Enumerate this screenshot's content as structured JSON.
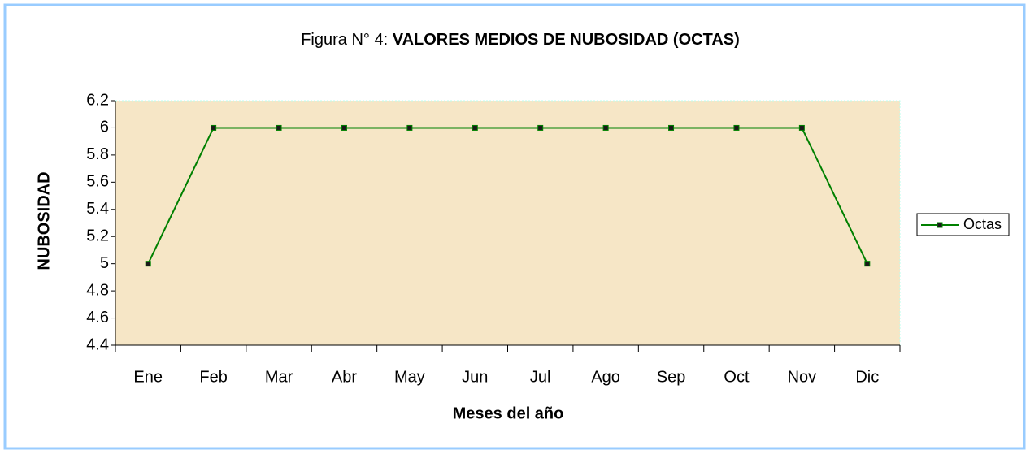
{
  "chart_data": {
    "type": "line",
    "title": [
      "Figura N° 4:",
      "VALORES MEDIOS DE NUBOSIDAD (OCTAS)"
    ],
    "x_label": "Meses del año",
    "y_label": "NUBOSIDAD",
    "categories": [
      "Ene",
      "Feb",
      "Mar",
      "Abr",
      "May",
      "Jun",
      "Jul",
      "Ago",
      "Sep",
      "Oct",
      "Nov",
      "Dic"
    ],
    "series": [
      {
        "name": "Octas",
        "color": "#008000",
        "values": [
          5,
          6,
          6,
          6,
          6,
          6,
          6,
          6,
          6,
          6,
          6,
          5
        ]
      }
    ],
    "ylim": [
      4.4,
      6.2
    ],
    "yticks": [
      4.4,
      4.6,
      4.8,
      5,
      5.2,
      5.4,
      5.6,
      5.8,
      6,
      6.2
    ],
    "legend": "right"
  }
}
